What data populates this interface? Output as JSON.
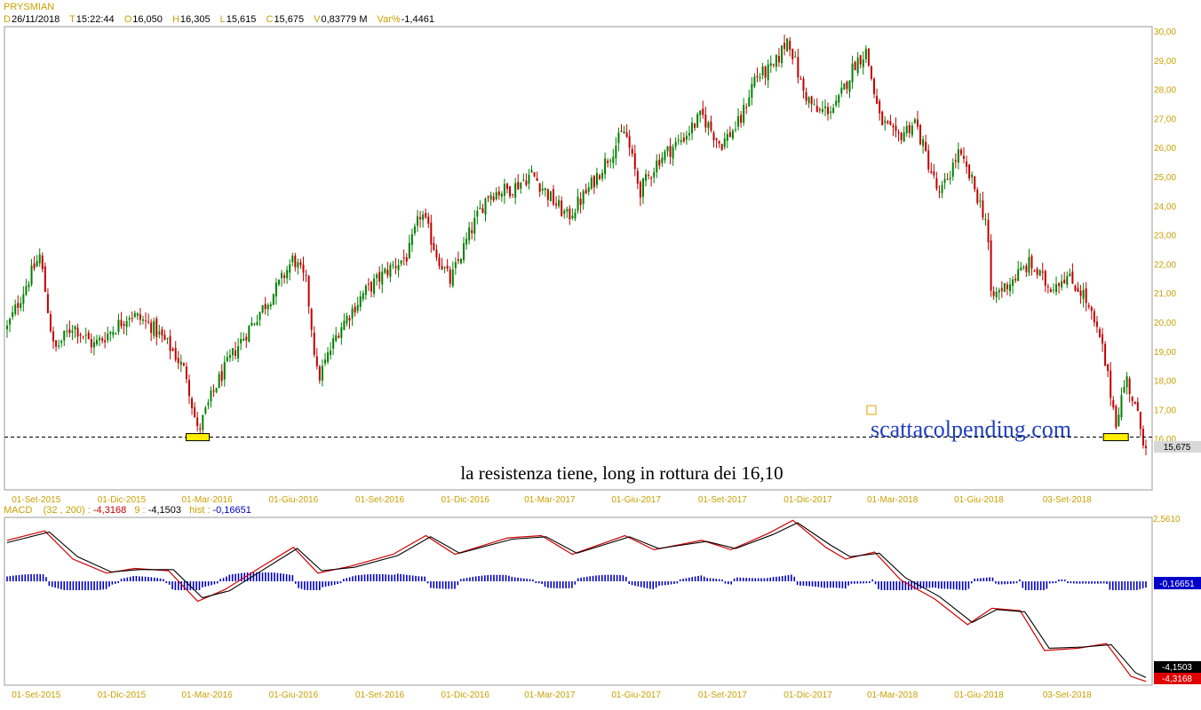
{
  "header": {
    "ticker": "PRYSMIAN",
    "items": [
      {
        "key": "D",
        "value": "26/11/2018"
      },
      {
        "key": "T",
        "value": "15:22:44"
      },
      {
        "key": "O",
        "value": "16,050"
      },
      {
        "key": "H",
        "value": "16,305"
      },
      {
        "key": "L",
        "value": "15,615"
      },
      {
        "key": "C",
        "value": "15,675"
      },
      {
        "key": "V",
        "value": "0,83779 M"
      },
      {
        "key": "Var%",
        "value": "-1,4461"
      }
    ]
  },
  "macd_header": {
    "name": "MACD",
    "params": "(32 , 200) :",
    "macd_value": "-4,3168",
    "signal_label": "9 :",
    "signal_value": "-4,1503",
    "hist_label": "hist :",
    "hist_value": "-0,16651"
  },
  "colors": {
    "up": "#008000",
    "down": "#c00000",
    "axis_text": "#c8a000",
    "macd_line": "#d00000",
    "signal_line": "#000000",
    "histogram": "#0000c0",
    "watermark": "#1f3fbf"
  },
  "chart_data": [
    {
      "type": "candlestick",
      "title": "PRYSMIAN",
      "x_tick_labels": [
        "01-Set-2015",
        "01-Dic-2015",
        "01-Mar-2016",
        "01-Giu-2016",
        "01-Set-2016",
        "01-Dic-2016",
        "01-Mar-2017",
        "01-Giu-2017",
        "01-Set-2017",
        "01-Dic-2017",
        "01-Mar-2018",
        "01-Giu-2018",
        "03-Set-2018"
      ],
      "y_tick_labels": [
        "16,00",
        "17,00",
        "18,00",
        "19,00",
        "20,00",
        "21,00",
        "22,00",
        "23,00",
        "24,00",
        "25,00",
        "26,00",
        "27,00",
        "28,00",
        "29,00",
        "30,00"
      ],
      "ylim": [
        14.6,
        30.1
      ],
      "last_price_label": "15,675",
      "support_level": 16.05,
      "annotation": "la resistenza tiene, long in rottura dei 16,10",
      "watermark": "scattacolpending.com",
      "close_path": [
        {
          "x": "2015-08-01",
          "y": 19.8
        },
        {
          "x": "2015-08-20",
          "y": 21.2
        },
        {
          "x": "2015-09-05",
          "y": 22.3
        },
        {
          "x": "2015-09-20",
          "y": 19.0
        },
        {
          "x": "2015-10-10",
          "y": 19.9
        },
        {
          "x": "2015-11-01",
          "y": 19.2
        },
        {
          "x": "2015-11-20",
          "y": 19.7
        },
        {
          "x": "2015-12-10",
          "y": 20.3
        },
        {
          "x": "2016-01-01",
          "y": 19.9
        },
        {
          "x": "2016-01-25",
          "y": 19.0
        },
        {
          "x": "2016-02-08",
          "y": 18.2
        },
        {
          "x": "2016-02-20",
          "y": 16.2
        },
        {
          "x": "2016-03-10",
          "y": 17.8
        },
        {
          "x": "2016-04-01",
          "y": 19.1
        },
        {
          "x": "2016-04-25",
          "y": 20.3
        },
        {
          "x": "2016-05-15",
          "y": 21.2
        },
        {
          "x": "2016-06-01",
          "y": 22.2
        },
        {
          "x": "2016-06-15",
          "y": 21.3
        },
        {
          "x": "2016-06-27",
          "y": 18.0
        },
        {
          "x": "2016-07-20",
          "y": 19.8
        },
        {
          "x": "2016-08-15",
          "y": 21.0
        },
        {
          "x": "2016-09-10",
          "y": 21.8
        },
        {
          "x": "2016-10-01",
          "y": 22.3
        },
        {
          "x": "2016-10-15",
          "y": 23.8
        },
        {
          "x": "2016-11-01",
          "y": 22.3
        },
        {
          "x": "2016-11-15",
          "y": 21.4
        },
        {
          "x": "2016-12-05",
          "y": 23.0
        },
        {
          "x": "2016-12-25",
          "y": 24.4
        },
        {
          "x": "2017-01-20",
          "y": 24.6
        },
        {
          "x": "2017-02-10",
          "y": 25.1
        },
        {
          "x": "2017-03-01",
          "y": 24.3
        },
        {
          "x": "2017-03-20",
          "y": 23.6
        },
        {
          "x": "2017-04-10",
          "y": 24.5
        },
        {
          "x": "2017-05-01",
          "y": 25.6
        },
        {
          "x": "2017-05-20",
          "y": 26.6
        },
        {
          "x": "2017-06-05",
          "y": 24.5
        },
        {
          "x": "2017-06-25",
          "y": 25.6
        },
        {
          "x": "2017-07-20",
          "y": 26.3
        },
        {
          "x": "2017-08-10",
          "y": 27.1
        },
        {
          "x": "2017-08-30",
          "y": 26.1
        },
        {
          "x": "2017-09-20",
          "y": 26.9
        },
        {
          "x": "2017-10-05",
          "y": 28.4
        },
        {
          "x": "2017-10-25",
          "y": 28.7
        },
        {
          "x": "2017-11-10",
          "y": 29.8
        },
        {
          "x": "2017-11-25",
          "y": 28.0
        },
        {
          "x": "2017-12-10",
          "y": 27.2
        },
        {
          "x": "2017-12-31",
          "y": 27.4
        },
        {
          "x": "2018-01-20",
          "y": 28.9
        },
        {
          "x": "2018-02-01",
          "y": 29.3
        },
        {
          "x": "2018-02-15",
          "y": 27.0
        },
        {
          "x": "2018-03-05",
          "y": 26.3
        },
        {
          "x": "2018-03-25",
          "y": 26.9
        },
        {
          "x": "2018-04-20",
          "y": 24.3
        },
        {
          "x": "2018-05-10",
          "y": 25.8
        },
        {
          "x": "2018-05-25",
          "y": 24.8
        },
        {
          "x": "2018-06-10",
          "y": 23.4
        },
        {
          "x": "2018-06-14",
          "y": 20.8
        },
        {
          "x": "2018-07-01",
          "y": 21.3
        },
        {
          "x": "2018-07-25",
          "y": 22.0
        },
        {
          "x": "2018-08-15",
          "y": 21.2
        },
        {
          "x": "2018-09-01",
          "y": 21.6
        },
        {
          "x": "2018-09-20",
          "y": 21.0
        },
        {
          "x": "2018-10-10",
          "y": 19.2
        },
        {
          "x": "2018-10-25",
          "y": 16.6
        },
        {
          "x": "2018-11-05",
          "y": 18.1
        },
        {
          "x": "2018-11-15",
          "y": 17.0
        },
        {
          "x": "2018-11-26",
          "y": 15.675
        }
      ]
    },
    {
      "type": "line",
      "title": "MACD (32 , 200)",
      "y_tick_labels": [
        "2,5610"
      ],
      "value_labels": {
        "hist": "-0,16651",
        "signal": "-4,1503",
        "macd": "-4,3168"
      },
      "series": [
        {
          "name": "MACD",
          "points": [
            {
              "x": "2015-08-01",
              "y": 1.7
            },
            {
              "x": "2015-09-10",
              "y": 2.1
            },
            {
              "x": "2015-10-10",
              "y": 0.9
            },
            {
              "x": "2015-11-15",
              "y": 0.3
            },
            {
              "x": "2015-12-15",
              "y": 0.5
            },
            {
              "x": "2016-01-20",
              "y": 0.4
            },
            {
              "x": "2016-02-20",
              "y": -0.9
            },
            {
              "x": "2016-03-20",
              "y": -0.4
            },
            {
              "x": "2016-04-25",
              "y": 0.5
            },
            {
              "x": "2016-06-01",
              "y": 1.4
            },
            {
              "x": "2016-06-27",
              "y": 0.3
            },
            {
              "x": "2016-08-01",
              "y": 0.6
            },
            {
              "x": "2016-09-15",
              "y": 1.1
            },
            {
              "x": "2016-10-20",
              "y": 1.9
            },
            {
              "x": "2016-11-20",
              "y": 1.1
            },
            {
              "x": "2017-01-15",
              "y": 1.8
            },
            {
              "x": "2017-02-20",
              "y": 1.9
            },
            {
              "x": "2017-03-25",
              "y": 1.1
            },
            {
              "x": "2017-05-20",
              "y": 1.9
            },
            {
              "x": "2017-06-20",
              "y": 1.3
            },
            {
              "x": "2017-08-10",
              "y": 1.7
            },
            {
              "x": "2017-09-10",
              "y": 1.3
            },
            {
              "x": "2017-10-20",
              "y": 2.0
            },
            {
              "x": "2017-11-15",
              "y": 2.55
            },
            {
              "x": "2017-12-20",
              "y": 1.4
            },
            {
              "x": "2018-01-10",
              "y": 0.9
            },
            {
              "x": "2018-02-10",
              "y": 1.2
            },
            {
              "x": "2018-03-10",
              "y": 0.0
            },
            {
              "x": "2018-04-15",
              "y": -0.8
            },
            {
              "x": "2018-05-20",
              "y": -1.9
            },
            {
              "x": "2018-06-15",
              "y": -1.2
            },
            {
              "x": "2018-07-15",
              "y": -1.3
            },
            {
              "x": "2018-08-10",
              "y": -3.0
            },
            {
              "x": "2018-09-15",
              "y": -2.9
            },
            {
              "x": "2018-10-15",
              "y": -2.7
            },
            {
              "x": "2018-11-10",
              "y": -4.1
            },
            {
              "x": "2018-11-26",
              "y": -4.3168
            }
          ]
        },
        {
          "name": "Signal",
          "points": [
            {
              "x": "2015-08-01",
              "y": 1.6
            },
            {
              "x": "2015-09-15",
              "y": 2.05
            },
            {
              "x": "2015-10-15",
              "y": 1.0
            },
            {
              "x": "2015-11-20",
              "y": 0.35
            },
            {
              "x": "2015-12-20",
              "y": 0.45
            },
            {
              "x": "2016-01-25",
              "y": 0.45
            },
            {
              "x": "2016-02-25",
              "y": -0.75
            },
            {
              "x": "2016-03-25",
              "y": -0.45
            },
            {
              "x": "2016-04-30",
              "y": 0.45
            },
            {
              "x": "2016-06-05",
              "y": 1.35
            },
            {
              "x": "2016-07-01",
              "y": 0.4
            },
            {
              "x": "2016-08-05",
              "y": 0.55
            },
            {
              "x": "2016-09-20",
              "y": 1.05
            },
            {
              "x": "2016-10-25",
              "y": 1.85
            },
            {
              "x": "2016-11-25",
              "y": 1.15
            },
            {
              "x": "2017-01-20",
              "y": 1.75
            },
            {
              "x": "2017-02-25",
              "y": 1.85
            },
            {
              "x": "2017-03-30",
              "y": 1.15
            },
            {
              "x": "2017-05-25",
              "y": 1.85
            },
            {
              "x": "2017-06-25",
              "y": 1.35
            },
            {
              "x": "2017-08-15",
              "y": 1.65
            },
            {
              "x": "2017-09-15",
              "y": 1.35
            },
            {
              "x": "2017-10-25",
              "y": 1.95
            },
            {
              "x": "2017-11-20",
              "y": 2.45
            },
            {
              "x": "2017-12-25",
              "y": 1.5
            },
            {
              "x": "2018-01-15",
              "y": 1.0
            },
            {
              "x": "2018-02-15",
              "y": 1.15
            },
            {
              "x": "2018-03-15",
              "y": 0.1
            },
            {
              "x": "2018-04-20",
              "y": -0.7
            },
            {
              "x": "2018-05-25",
              "y": -1.8
            },
            {
              "x": "2018-06-20",
              "y": -1.25
            },
            {
              "x": "2018-07-20",
              "y": -1.35
            },
            {
              "x": "2018-08-15",
              "y": -2.9
            },
            {
              "x": "2018-09-20",
              "y": -2.85
            },
            {
              "x": "2018-10-20",
              "y": -2.75
            },
            {
              "x": "2018-11-15",
              "y": -3.95
            },
            {
              "x": "2018-11-26",
              "y": -4.1503
            }
          ]
        }
      ]
    }
  ]
}
